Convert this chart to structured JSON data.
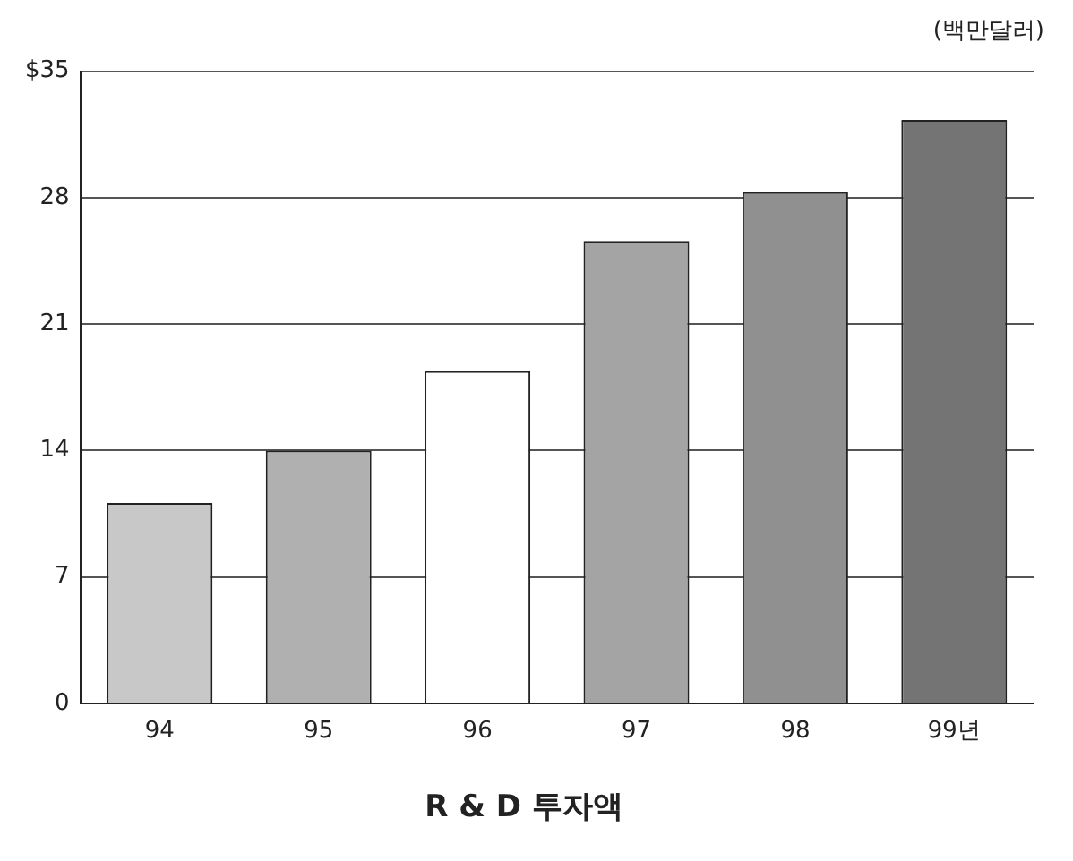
{
  "chart_data": {
    "type": "bar",
    "title": "R & D 투자액",
    "annotations": [
      "(백만달러)"
    ],
    "categories": [
      "94",
      "95",
      "96",
      "97",
      "98",
      "99년"
    ],
    "values": [
      11.1,
      14,
      18.4,
      25.6,
      28.3,
      32.3
    ],
    "colors": [
      "#c8c8c8",
      "#b0b0b0",
      "#ffffff",
      "#a4a4a4",
      "#909090",
      "#747474"
    ],
    "ylim": [
      0,
      35
    ],
    "yticks": [
      0,
      7,
      14,
      21,
      28,
      {
        "value": 35,
        "label": "$35"
      }
    ],
    "grid": "y",
    "legend": false
  }
}
